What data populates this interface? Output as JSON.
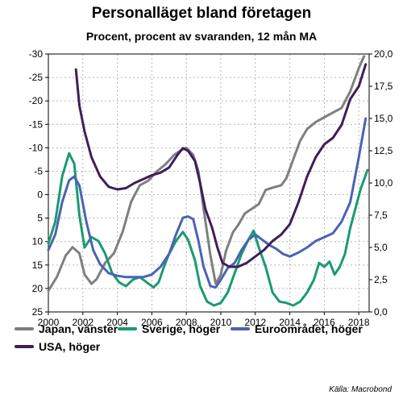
{
  "chart_data": {
    "type": "line",
    "title": "Personalläget bland företagen",
    "subtitle": "Procent, procent av svaranden, 12 mån MA",
    "source": "Källa: Macrobond",
    "x_ticks": [
      "2000",
      "2002",
      "2004",
      "2006",
      "2008",
      "2010",
      "2012",
      "2014",
      "2016",
      "2018"
    ],
    "x_range": [
      2000,
      2018.6
    ],
    "left_axis": {
      "ticks": [
        "-30",
        "-25",
        "-20",
        "-15",
        "-10",
        "-5",
        "0",
        "5",
        "10",
        "15",
        "20",
        "25"
      ],
      "range": [
        -30,
        25
      ],
      "inverted": true
    },
    "right_axis": {
      "ticks": [
        "20,0",
        "17,5",
        "15,0",
        "12,5",
        "10,0",
        "7,5",
        "5,0",
        "2,5",
        "0,0"
      ],
      "range": [
        0,
        20
      ]
    },
    "grid": true,
    "legend_position": "bottom",
    "series": [
      {
        "name": "Japan, vänster",
        "axis": "left",
        "color": "#7f7f7f",
        "points": [
          [
            2000,
            20.5
          ],
          [
            2000.5,
            17.5
          ],
          [
            2001,
            13
          ],
          [
            2001.4,
            11.2
          ],
          [
            2001.8,
            12.5
          ],
          [
            2002.1,
            17
          ],
          [
            2002.5,
            19
          ],
          [
            2002.8,
            18
          ],
          [
            2003.3,
            14.5
          ],
          [
            2003.8,
            12.5
          ],
          [
            2004.3,
            8
          ],
          [
            2004.8,
            1.5
          ],
          [
            2005.3,
            -2
          ],
          [
            2005.8,
            -3
          ],
          [
            2006.3,
            -5
          ],
          [
            2006.8,
            -6.5
          ],
          [
            2007.3,
            -8.5
          ],
          [
            2007.7,
            -9.5
          ],
          [
            2008,
            -10
          ],
          [
            2008.4,
            -8.5
          ],
          [
            2008.7,
            -5
          ],
          [
            2009,
            3
          ],
          [
            2009.4,
            13
          ],
          [
            2009.7,
            19
          ],
          [
            2010,
            17
          ],
          [
            2010.3,
            12
          ],
          [
            2010.7,
            8
          ],
          [
            2011,
            6.5
          ],
          [
            2011.4,
            4
          ],
          [
            2011.8,
            3
          ],
          [
            2012.2,
            2
          ],
          [
            2012.6,
            -1
          ],
          [
            2013,
            -1.5
          ],
          [
            2013.5,
            -2
          ],
          [
            2013.8,
            -3.5
          ],
          [
            2014.2,
            -7.5
          ],
          [
            2014.6,
            -11.5
          ],
          [
            2015,
            -14
          ],
          [
            2015.5,
            -15.5
          ],
          [
            2016,
            -16.5
          ],
          [
            2016.5,
            -17.5
          ],
          [
            2017,
            -18.5
          ],
          [
            2017.5,
            -22
          ],
          [
            2018,
            -27
          ],
          [
            2018.3,
            -29.5
          ]
        ]
      },
      {
        "name": "Sverige, höger",
        "axis": "right",
        "color": "#1a9a72",
        "points": [
          [
            2000,
            5.3
          ],
          [
            2000.4,
            7
          ],
          [
            2000.8,
            10.5
          ],
          [
            2001.2,
            12.3
          ],
          [
            2001.5,
            11.5
          ],
          [
            2001.8,
            7.5
          ],
          [
            2002.1,
            5
          ],
          [
            2002.5,
            5.8
          ],
          [
            2002.9,
            5.5
          ],
          [
            2003.3,
            4.5
          ],
          [
            2003.7,
            3
          ],
          [
            2004.1,
            2.3
          ],
          [
            2004.5,
            2
          ],
          [
            2004.9,
            2.5
          ],
          [
            2005.3,
            2.7
          ],
          [
            2005.7,
            2.3
          ],
          [
            2006.1,
            1.9
          ],
          [
            2006.4,
            2.3
          ],
          [
            2006.7,
            3.5
          ],
          [
            2007,
            4.5
          ],
          [
            2007.4,
            5.5
          ],
          [
            2007.8,
            6.2
          ],
          [
            2008.1,
            5.6
          ],
          [
            2008.5,
            4
          ],
          [
            2008.8,
            2
          ],
          [
            2009.2,
            0.8
          ],
          [
            2009.6,
            0.5
          ],
          [
            2010,
            0.7
          ],
          [
            2010.4,
            1.5
          ],
          [
            2010.8,
            3
          ],
          [
            2011.2,
            4.5
          ],
          [
            2011.6,
            5.6
          ],
          [
            2011.9,
            6.3
          ],
          [
            2012.2,
            5
          ],
          [
            2012.6,
            3.5
          ],
          [
            2013,
            1.5
          ],
          [
            2013.4,
            0.8
          ],
          [
            2013.8,
            0.7
          ],
          [
            2014.2,
            0.5
          ],
          [
            2014.6,
            0.8
          ],
          [
            2015,
            1.5
          ],
          [
            2015.4,
            2.5
          ],
          [
            2015.7,
            3.8
          ],
          [
            2016,
            3.5
          ],
          [
            2016.3,
            3.9
          ],
          [
            2016.6,
            2.9
          ],
          [
            2016.9,
            3.5
          ],
          [
            2017.2,
            4.5
          ],
          [
            2017.5,
            6.5
          ],
          [
            2017.8,
            8
          ],
          [
            2018.1,
            9.5
          ],
          [
            2018.5,
            11
          ]
        ]
      },
      {
        "name": "Euroområdet, höger",
        "axis": "right",
        "color": "#4a63b3",
        "points": [
          [
            2000,
            4.8
          ],
          [
            2000.4,
            6
          ],
          [
            2000.8,
            8.5
          ],
          [
            2001.2,
            10.2
          ],
          [
            2001.5,
            10.5
          ],
          [
            2001.8,
            9.8
          ],
          [
            2002.2,
            7
          ],
          [
            2002.6,
            4.8
          ],
          [
            2003,
            3.7
          ],
          [
            2003.5,
            3
          ],
          [
            2004,
            2.8
          ],
          [
            2004.5,
            2.7
          ],
          [
            2005,
            2.7
          ],
          [
            2005.5,
            2.7
          ],
          [
            2006,
            2.9
          ],
          [
            2006.5,
            3.5
          ],
          [
            2007,
            4.5
          ],
          [
            2007.4,
            6
          ],
          [
            2007.8,
            7.3
          ],
          [
            2008.1,
            7.4
          ],
          [
            2008.4,
            7.2
          ],
          [
            2008.7,
            5.5
          ],
          [
            2009,
            3.5
          ],
          [
            2009.4,
            2
          ],
          [
            2009.7,
            1.9
          ],
          [
            2010,
            2.5
          ],
          [
            2010.4,
            3.4
          ],
          [
            2010.8,
            3.8
          ],
          [
            2011.2,
            4.8
          ],
          [
            2011.6,
            5.6
          ],
          [
            2012,
            6
          ],
          [
            2012.4,
            5.6
          ],
          [
            2012.8,
            5.2
          ],
          [
            2013.2,
            4.9
          ],
          [
            2013.6,
            4.5
          ],
          [
            2014,
            4.3
          ],
          [
            2014.5,
            4.6
          ],
          [
            2015,
            5
          ],
          [
            2015.5,
            5.5
          ],
          [
            2016,
            5.8
          ],
          [
            2016.5,
            6.1
          ],
          [
            2017,
            7
          ],
          [
            2017.5,
            8.5
          ],
          [
            2018,
            12
          ],
          [
            2018.4,
            15
          ]
        ]
      },
      {
        "name": "USA, höger",
        "axis": "right",
        "color": "#3f1e5a",
        "points": [
          [
            2001.6,
            18.8
          ],
          [
            2001.8,
            16
          ],
          [
            2002.1,
            14
          ],
          [
            2002.5,
            12
          ],
          [
            2003,
            10.5
          ],
          [
            2003.5,
            9.7
          ],
          [
            2004,
            9.5
          ],
          [
            2004.5,
            9.6
          ],
          [
            2005,
            10
          ],
          [
            2005.5,
            10.3
          ],
          [
            2006,
            10.6
          ],
          [
            2006.5,
            10.8
          ],
          [
            2007,
            11.2
          ],
          [
            2007.5,
            12.2
          ],
          [
            2007.8,
            12.7
          ],
          [
            2008.1,
            12.5
          ],
          [
            2008.5,
            11.7
          ],
          [
            2008.8,
            10
          ],
          [
            2009.1,
            8
          ],
          [
            2009.5,
            6.5
          ],
          [
            2009.8,
            5
          ],
          [
            2010.1,
            3.8
          ],
          [
            2010.5,
            3.5
          ],
          [
            2011,
            3.5
          ],
          [
            2011.5,
            3.8
          ],
          [
            2012,
            4.3
          ],
          [
            2012.5,
            4.8
          ],
          [
            2013,
            5.5
          ],
          [
            2013.5,
            6
          ],
          [
            2014,
            6.8
          ],
          [
            2014.5,
            8.5
          ],
          [
            2015,
            10.5
          ],
          [
            2015.5,
            12
          ],
          [
            2016,
            13
          ],
          [
            2016.5,
            13.5
          ],
          [
            2017,
            14.5
          ],
          [
            2017.5,
            16.5
          ],
          [
            2018,
            17.5
          ],
          [
            2018.4,
            19.2
          ]
        ]
      }
    ]
  }
}
